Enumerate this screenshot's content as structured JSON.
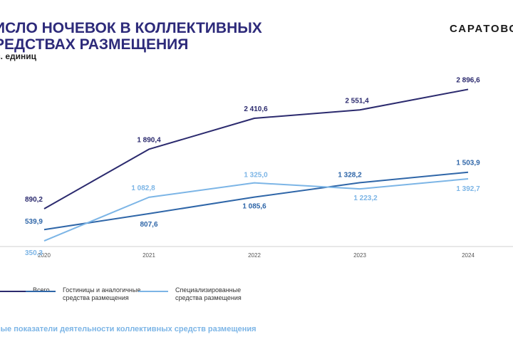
{
  "header": {
    "title_line1": "ИСЛО НОЧЕВОК В КОЛЛЕКТИВНЫХ",
    "title_line2": "РЕДСТВАХ РАЗМЕЩЕНИЯ",
    "unit": "с. единиц",
    "brand": "САРАТОВС"
  },
  "footer": {
    "text": "ные показатели деятельности коллективных средств размещения"
  },
  "colors": {
    "title": "#2d2a7a",
    "vsego": "#2b2a6e",
    "gostinicy": "#2f66a8",
    "special": "#7cb5e6"
  },
  "chart_data": {
    "type": "line",
    "x": [
      "2020",
      "2021",
      "2022",
      "2023",
      "2024"
    ],
    "series": [
      {
        "name": "Всего",
        "values": [
          890.2,
          1890.4,
          2410.6,
          2551.4,
          2896.6
        ],
        "labels": [
          "890,2",
          "1 890,4",
          "2 410,6",
          "2 551,4",
          "2 896,6"
        ],
        "color": "#2b2a6e"
      },
      {
        "name": "Гостиницы и аналогичные средства размещения",
        "values": [
          539.9,
          807.6,
          1085.6,
          1328.2,
          1503.9
        ],
        "labels": [
          "539,9",
          "807,6",
          "1 085,6",
          "1 328,2",
          "1 503,9"
        ],
        "color": "#2f66a8"
      },
      {
        "name": "Специализированные средства размещения",
        "values": [
          350.3,
          1082.8,
          1325.0,
          1223.2,
          1392.7
        ],
        "labels": [
          "350,3",
          "1 082,8",
          "1 325,0",
          "1 223,2",
          "1 392,7"
        ],
        "color": "#7cb5e6"
      }
    ],
    "legend": [
      "Всего",
      "Гостиницы и аналогичные средства размещения",
      "Специализированные средства размещения"
    ],
    "legend_position": "bottom",
    "grid": false
  }
}
